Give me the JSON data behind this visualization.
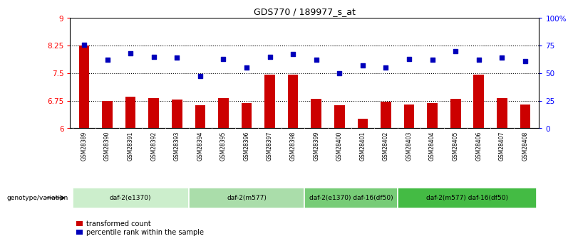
{
  "title": "GDS770 / 189977_s_at",
  "samples": [
    "GSM28389",
    "GSM28390",
    "GSM28391",
    "GSM28392",
    "GSM28393",
    "GSM28394",
    "GSM28395",
    "GSM28396",
    "GSM28397",
    "GSM28398",
    "GSM28399",
    "GSM28400",
    "GSM28401",
    "GSM28402",
    "GSM28403",
    "GSM28404",
    "GSM28405",
    "GSM28406",
    "GSM28407",
    "GSM28408"
  ],
  "bar_values": [
    8.25,
    6.75,
    6.85,
    6.82,
    6.78,
    6.62,
    6.82,
    6.68,
    7.45,
    7.45,
    6.8,
    6.62,
    6.25,
    6.72,
    6.65,
    6.68,
    6.8,
    7.45,
    6.82,
    6.65
  ],
  "dot_values_pct": [
    76,
    62,
    68,
    65,
    64,
    47,
    63,
    55,
    65,
    67,
    62,
    50,
    57,
    55,
    63,
    62,
    70,
    62,
    64,
    61
  ],
  "ylim_left": [
    6,
    9
  ],
  "ylim_right": [
    0,
    100
  ],
  "yticks_left": [
    6,
    6.75,
    7.5,
    8.25,
    9
  ],
  "ytick_labels_left": [
    "6",
    "6.75",
    "7.5",
    "8.25",
    "9"
  ],
  "yticks_right": [
    0,
    25,
    50,
    75,
    100
  ],
  "ytick_labels_right": [
    "0",
    "25",
    "50",
    "75",
    "100%"
  ],
  "hlines": [
    6.75,
    7.5,
    8.25
  ],
  "bar_color": "#cc0000",
  "dot_color": "#0000bb",
  "group_labels": [
    "daf-2(e1370)",
    "daf-2(m577)",
    "daf-2(e1370) daf-16(df50)",
    "daf-2(m577) daf-16(df50)"
  ],
  "group_colors": [
    "#cceecc",
    "#aaddaa",
    "#77cc77",
    "#44bb44"
  ],
  "group_sample_counts": [
    5,
    5,
    4,
    6
  ],
  "legend_bar": "transformed count",
  "legend_dot": "percentile rank within the sample",
  "genotype_label": "genotype/variation",
  "xtick_bg_color": "#c8c8c8"
}
